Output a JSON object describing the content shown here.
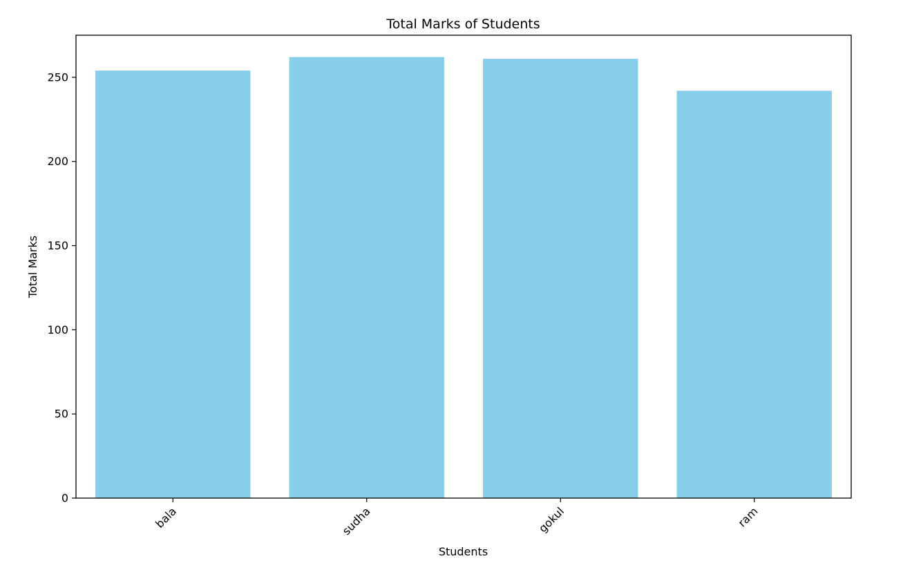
{
  "chart_data": {
    "type": "bar",
    "title": "Total Marks of Students",
    "xlabel": "Students",
    "ylabel": "Total Marks",
    "categories": [
      "bala",
      "sudha",
      "gokul",
      "ram"
    ],
    "values": [
      254,
      262,
      261,
      242
    ],
    "ylim": [
      0,
      275
    ],
    "yticks": [
      0,
      50,
      100,
      150,
      200,
      250
    ],
    "ytick_labels": [
      "0",
      "50",
      "100",
      "150",
      "200",
      "250"
    ],
    "bar_color": "#87CEEB",
    "xtick_rotation_deg": 45,
    "grid": false,
    "legend": "none"
  }
}
